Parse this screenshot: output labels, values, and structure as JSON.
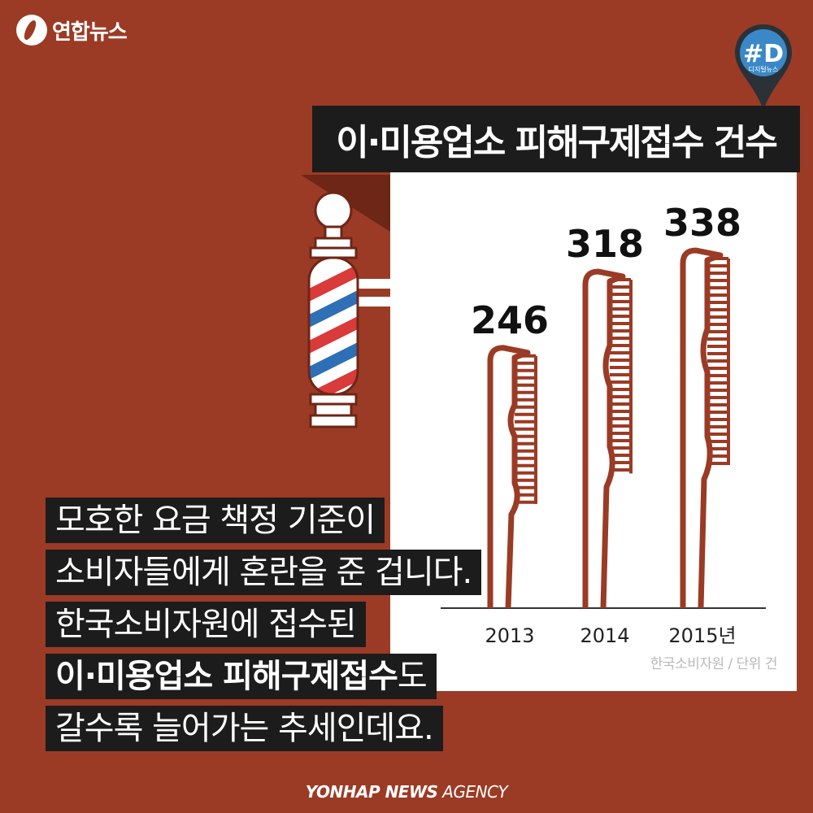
{
  "brand": {
    "logo_text": "연합뉴스",
    "badge_hash": "#D",
    "badge_sub": "디지털뉴스"
  },
  "title": "이·미용업소 피해구제접수 건수",
  "chart_data": {
    "type": "bar",
    "categories": [
      "2013",
      "2014",
      "2015년"
    ],
    "values": [
      246,
      318,
      338
    ],
    "title": "이·미용업소 피해구제접수 건수",
    "xlabel": "",
    "ylabel": "",
    "ylim": [
      0,
      338
    ],
    "bar_color": "#9b3b25",
    "source": "한국소비자원 / 단위 건"
  },
  "captions": {
    "line1": "모호한 요금 책정 기준이",
    "line2": "소비자들에게 혼란을 준 겁니다.",
    "line3": "한국소비자원에 접수된",
    "line4_bold": "이·미용업소 피해구제접수",
    "line4_rest": "도",
    "line5": "갈수록 늘어가는 추세인데요."
  },
  "footer": {
    "bold": "YONHAP NEWS",
    "italic": " AGENCY"
  },
  "colors": {
    "background": "#9b3b25",
    "panel": "#ffffff",
    "title_bar": "#1c1c1c",
    "pole_red": "#d93a3a",
    "pole_blue": "#2e6fb5"
  }
}
